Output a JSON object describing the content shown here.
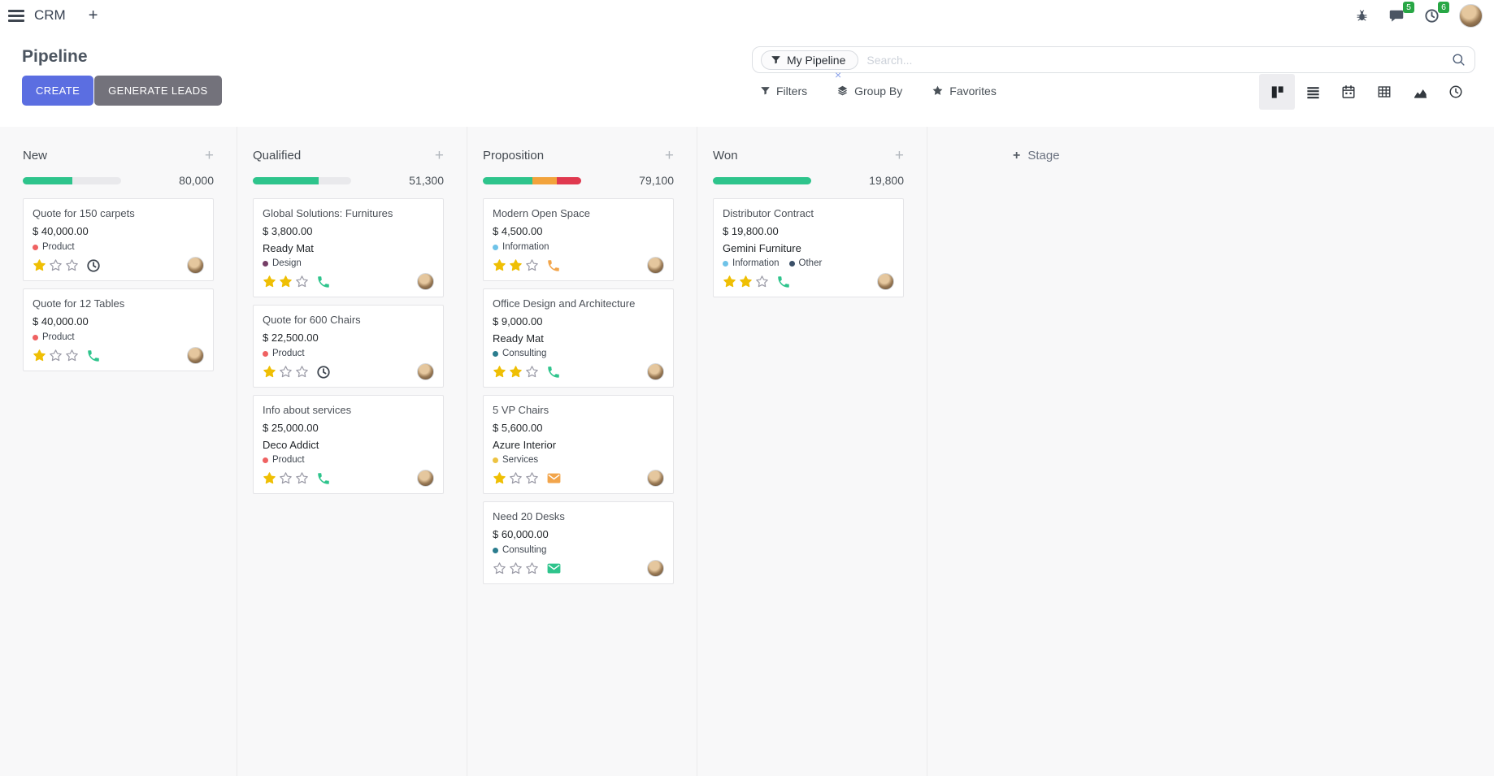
{
  "colors": {
    "primary_button": "#5b6ee1",
    "secondary_button": "#73727b",
    "badge_green": "#28a745",
    "facet_x": "#8aa2ea",
    "star_filled": "#efbf04",
    "star_empty": "#9a9aa6"
  },
  "navbar": {
    "app_title": "CRM",
    "messages_count": "5",
    "activities_count": "6"
  },
  "control_panel": {
    "title": "Pipeline",
    "search": {
      "facet": "My Pipeline",
      "placeholder": "Search..."
    },
    "buttons": {
      "create": "CREATE",
      "generate_leads": "GENERATE LEADS"
    },
    "menus": {
      "filters": "Filters",
      "group_by": "Group By",
      "favorites": "Favorites"
    },
    "view_switcher": [
      "kanban",
      "list",
      "calendar",
      "pivot",
      "graph",
      "activity"
    ],
    "active_view": "kanban"
  },
  "board": {
    "add_stage_label": "Stage",
    "rating_max": 3,
    "columns": [
      {
        "name": "New",
        "total": "80,000",
        "progress": [
          {
            "color": "#2ec48c",
            "pct": 50
          }
        ],
        "cards": [
          {
            "title": "Quote for 150 carpets",
            "amount": "$ 40,000.00",
            "company": null,
            "tags": [
              {
                "label": "Product",
                "color": "#ef6262"
              }
            ],
            "rating": 1,
            "activity": {
              "icon": "clock-icon",
              "color": "#3f4650"
            }
          },
          {
            "title": "Quote for 12 Tables",
            "amount": "$ 40,000.00",
            "company": null,
            "tags": [
              {
                "label": "Product",
                "color": "#ef6262"
              }
            ],
            "rating": 1,
            "activity": {
              "icon": "phone-icon",
              "color": "#2ec48c"
            }
          }
        ]
      },
      {
        "name": "Qualified",
        "total": "51,300",
        "progress": [
          {
            "color": "#2ec48c",
            "pct": 67
          }
        ],
        "cards": [
          {
            "title": "Global Solutions: Furnitures",
            "amount": "$ 3,800.00",
            "company": "Ready Mat",
            "tags": [
              {
                "label": "Design",
                "color": "#753e66"
              }
            ],
            "rating": 2,
            "activity": {
              "icon": "phone-icon",
              "color": "#2ec48c"
            }
          },
          {
            "title": "Quote for 600 Chairs",
            "amount": "$ 22,500.00",
            "company": null,
            "tags": [
              {
                "label": "Product",
                "color": "#ef6262"
              }
            ],
            "rating": 1,
            "activity": {
              "icon": "clock-icon",
              "color": "#3f4650"
            }
          },
          {
            "title": "Info about services",
            "amount": "$ 25,000.00",
            "company": "Deco Addict",
            "tags": [
              {
                "label": "Product",
                "color": "#ef6262"
              }
            ],
            "rating": 1,
            "activity": {
              "icon": "phone-icon",
              "color": "#2ec48c"
            }
          }
        ]
      },
      {
        "name": "Proposition",
        "total": "79,100",
        "progress": [
          {
            "color": "#2ec48c",
            "pct": 50
          },
          {
            "color": "#f2a33c",
            "pct": 25
          },
          {
            "color": "#e0394f",
            "pct": 25
          }
        ],
        "cards": [
          {
            "title": "Modern Open Space",
            "amount": "$ 4,500.00",
            "company": null,
            "tags": [
              {
                "label": "Information",
                "color": "#6fc3e8"
              }
            ],
            "rating": 2,
            "activity": {
              "icon": "phone-icon",
              "color": "#f2a54b"
            }
          },
          {
            "title": "Office Design and Architecture",
            "amount": "$ 9,000.00",
            "company": "Ready Mat",
            "tags": [
              {
                "label": "Consulting",
                "color": "#2b7d8e"
              }
            ],
            "rating": 2,
            "activity": {
              "icon": "phone-icon",
              "color": "#2ec48c"
            }
          },
          {
            "title": "5 VP Chairs",
            "amount": "$ 5,600.00",
            "company": "Azure Interior",
            "tags": [
              {
                "label": "Services",
                "color": "#edc342"
              }
            ],
            "rating": 1,
            "activity": {
              "icon": "envelope-icon",
              "color": "#f2a54b"
            }
          },
          {
            "title": "Need 20 Desks",
            "amount": "$ 60,000.00",
            "company": null,
            "tags": [
              {
                "label": "Consulting",
                "color": "#2b7d8e"
              }
            ],
            "rating": 0,
            "activity": {
              "icon": "envelope-icon",
              "color": "#2ec48c"
            }
          }
        ]
      },
      {
        "name": "Won",
        "total": "19,800",
        "progress": [
          {
            "color": "#2ec48c",
            "pct": 100
          }
        ],
        "cards": [
          {
            "title": "Distributor Contract",
            "amount": "$ 19,800.00",
            "company": "Gemini Furniture",
            "tags": [
              {
                "label": "Information",
                "color": "#6fc3e8"
              },
              {
                "label": "Other",
                "color": "#3b5068"
              }
            ],
            "rating": 2,
            "activity": {
              "icon": "phone-icon",
              "color": "#2ec48c"
            }
          }
        ]
      }
    ]
  }
}
